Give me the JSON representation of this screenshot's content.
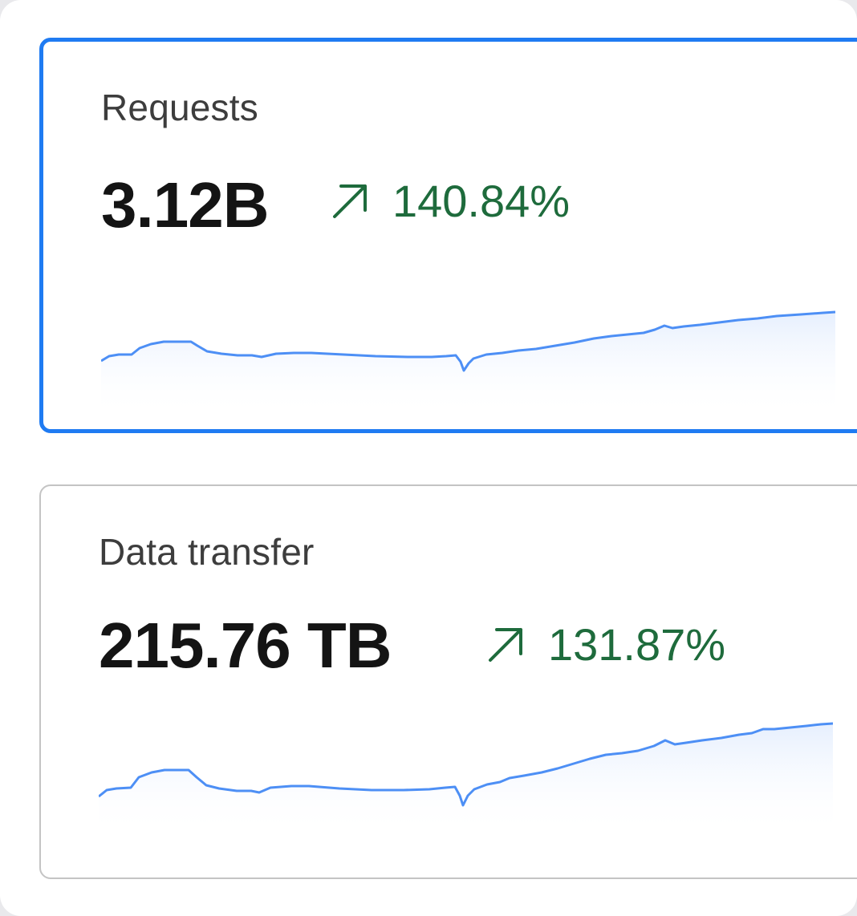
{
  "metrics": [
    {
      "label": "Requests",
      "value": "3.12B",
      "change": "140.84%",
      "trend_icon": "arrow-up-right-icon",
      "selected": true
    },
    {
      "label": "Data transfer",
      "value": "215.76 TB",
      "change": "131.87%",
      "trend_icon": "arrow-up-right-icon",
      "selected": false
    }
  ],
  "colors": {
    "selected_border": "#1f7bf2",
    "card_border": "#c4c4c4",
    "positive_change": "#1e6b3c",
    "sparkline_line": "#4d8ff5",
    "sparkline_fill": "#eaf2fe"
  }
}
